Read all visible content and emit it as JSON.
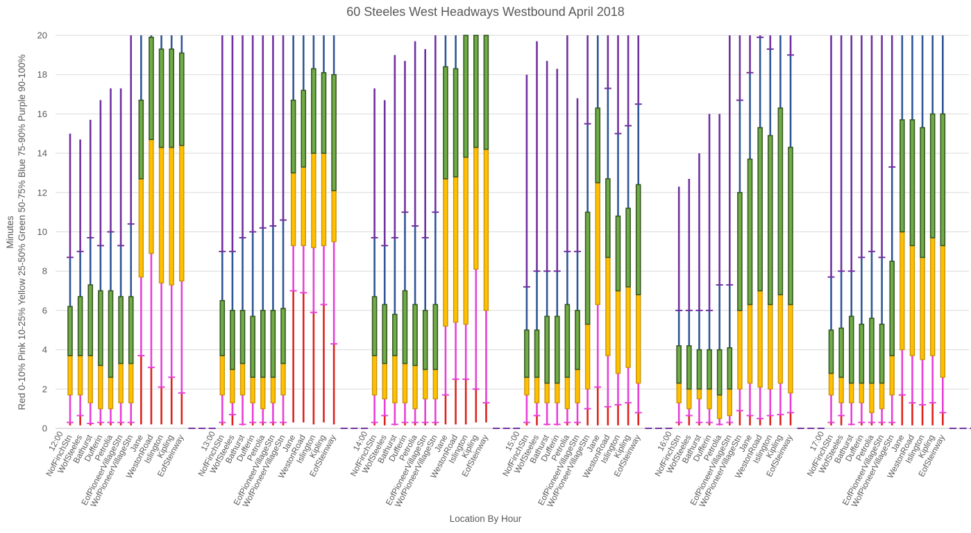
{
  "chart_data": {
    "type": "boxplot",
    "title": "60 Steeles West Headways Westbound April 2018",
    "xlabel": "Location By Hour",
    "ylabel_lines": [
      "Minutes",
      "Red 0-10%  Pink 10-25%  Yellow 25-50%  Green 50-75%  Blue 75-90%  Purple 90-100%"
    ],
    "ylim": [
      0,
      20
    ],
    "yticks": [
      0,
      2,
      4,
      6,
      8,
      10,
      12,
      14,
      16,
      18,
      20
    ],
    "grid": true,
    "segment_colors": {
      "red_0_10": "#e0201b",
      "pink_10_25": "#e83fd8",
      "yellow_25_50": "#ffc000",
      "yellow_border": "#c8930a",
      "green_50_75": "#70ad47",
      "green_border": "#375623",
      "blue_75_90": "#2f5597",
      "purple_90_100": "#7030a0",
      "tick_pink": "#e83fd8",
      "tick_purple": "#7030a0"
    },
    "stat_order": [
      "min",
      "p10",
      "p25",
      "p50",
      "p75",
      "p90",
      "max"
    ],
    "empty_slots_after_group": 3,
    "groups": [
      {
        "hour": "12:00",
        "locations": [
          {
            "name": "NofFinchStn",
            "stats": [
              0.15,
              0.3,
              1.7,
              3.7,
              6.2,
              8.7,
              15.0
            ]
          },
          {
            "name": "WofSteeles",
            "stats": [
              0.15,
              0.65,
              1.7,
              3.7,
              6.7,
              9.0,
              14.7
            ]
          },
          {
            "name": "Bathurst",
            "stats": [
              0.15,
              0.25,
              1.3,
              3.7,
              7.3,
              9.7,
              15.7
            ]
          },
          {
            "name": "Dufferin",
            "stats": [
              0.15,
              0.3,
              1.0,
              3.2,
              7.0,
              9.3,
              16.7
            ]
          },
          {
            "name": "Petrolia",
            "stats": [
              0.15,
              0.3,
              1.0,
              2.6,
              7.0,
              10.0,
              17.3
            ]
          },
          {
            "name": "EofPioneerVillageStn",
            "stats": [
              0.15,
              0.3,
              1.3,
              3.3,
              6.7,
              9.3,
              17.3
            ]
          },
          {
            "name": "WofPioneerVillageStn",
            "stats": [
              0.15,
              0.3,
              1.3,
              3.3,
              6.7,
              10.4,
              20
            ]
          },
          {
            "name": "Jane",
            "stats": [
              0.2,
              3.7,
              7.7,
              12.7,
              16.7,
              20,
              20
            ]
          },
          {
            "name": "WestonRoad",
            "stats": [
              0.2,
              3.1,
              8.9,
              14.7,
              19.9,
              20,
              20
            ]
          },
          {
            "name": "Islington",
            "stats": [
              0.2,
              2.1,
              7.4,
              14.3,
              19.3,
              20,
              20
            ]
          },
          {
            "name": "Kipling",
            "stats": [
              0.2,
              2.6,
              7.3,
              14.3,
              19.3,
              20,
              20
            ]
          },
          {
            "name": "EofSteinway",
            "stats": [
              0.2,
              1.8,
              7.5,
              14.4,
              19.1,
              20,
              20
            ]
          }
        ]
      },
      {
        "hour": "13:00",
        "locations": [
          {
            "name": "NofFinchStn",
            "stats": [
              0.15,
              0.3,
              1.7,
              3.7,
              6.5,
              9.0,
              20
            ]
          },
          {
            "name": "WofSteeles",
            "stats": [
              0.15,
              0.7,
              1.3,
              3.0,
              6.0,
              9.0,
              20
            ]
          },
          {
            "name": "Bathurst",
            "stats": [
              0.15,
              0.2,
              1.7,
              3.3,
              6.0,
              9.7,
              20
            ]
          },
          {
            "name": "Dufferin",
            "stats": [
              0.15,
              0.3,
              1.3,
              2.6,
              5.7,
              10.0,
              20
            ]
          },
          {
            "name": "Petrolia",
            "stats": [
              0.15,
              0.3,
              1.0,
              2.6,
              6.0,
              10.2,
              20
            ]
          },
          {
            "name": "EofPioneerVillageStn",
            "stats": [
              0.15,
              0.3,
              1.3,
              2.6,
              6.0,
              10.3,
              20
            ]
          },
          {
            "name": "WofPioneerVillageStn",
            "stats": [
              0.15,
              0.3,
              1.7,
              3.3,
              6.1,
              10.6,
              20
            ]
          },
          {
            "name": "Jane",
            "stats": [
              0.3,
              7.0,
              9.3,
              13.0,
              16.7,
              20,
              20
            ]
          },
          {
            "name": "WestonRoad",
            "stats": [
              0.3,
              6.9,
              9.3,
              13.3,
              17.2,
              20,
              20
            ]
          },
          {
            "name": "Islington",
            "stats": [
              0.2,
              5.9,
              9.2,
              14.0,
              18.3,
              20,
              20
            ]
          },
          {
            "name": "Kipling",
            "stats": [
              0.3,
              6.3,
              9.3,
              14.0,
              18.1,
              20,
              20
            ]
          },
          {
            "name": "EofSteinway",
            "stats": [
              0.2,
              4.3,
              9.5,
              12.1,
              18.0,
              20,
              20
            ]
          }
        ]
      },
      {
        "hour": "14:00",
        "locations": [
          {
            "name": "NofFinchStn",
            "stats": [
              0.15,
              0.3,
              1.7,
              3.7,
              6.7,
              9.7,
              17.3
            ]
          },
          {
            "name": "WofSteeles",
            "stats": [
              0.15,
              0.65,
              1.5,
              3.3,
              6.3,
              9.3,
              16.7
            ]
          },
          {
            "name": "Bathurst",
            "stats": [
              0.15,
              0.2,
              1.3,
              3.7,
              5.8,
              9.7,
              19.0
            ]
          },
          {
            "name": "Dufferin",
            "stats": [
              0.15,
              0.3,
              1.3,
              3.3,
              7.0,
              11.0,
              18.7
            ]
          },
          {
            "name": "Petrolia",
            "stats": [
              0.15,
              0.3,
              1.0,
              3.2,
              6.3,
              10.3,
              19.7
            ]
          },
          {
            "name": "EofPioneerVillageStn",
            "stats": [
              0.15,
              0.3,
              1.5,
              3.0,
              6.0,
              9.7,
              19.3
            ]
          },
          {
            "name": "WofPioneerVillageStn",
            "stats": [
              0.15,
              0.3,
              1.5,
              3.0,
              6.3,
              11.0,
              20
            ]
          },
          {
            "name": "Jane",
            "stats": [
              0.2,
              1.7,
              5.2,
              12.7,
              18.4,
              20,
              20
            ]
          },
          {
            "name": "WestonRoad",
            "stats": [
              0.2,
              2.5,
              5.4,
              12.8,
              18.3,
              20,
              20
            ]
          },
          {
            "name": "Islington",
            "stats": [
              0.2,
              2.5,
              5.3,
              13.8,
              20,
              20,
              20
            ]
          },
          {
            "name": "Kipling",
            "stats": [
              0.3,
              2.0,
              8.1,
              14.3,
              20,
              20,
              20
            ]
          },
          {
            "name": "EofSteinway",
            "stats": [
              0.3,
              1.3,
              6.0,
              14.2,
              20,
              20,
              20
            ]
          }
        ]
      },
      {
        "hour": "15:00",
        "locations": [
          {
            "name": "NofFinchStn",
            "stats": [
              0.15,
              0.3,
              1.7,
              2.6,
              5.0,
              7.2,
              18.0
            ]
          },
          {
            "name": "WofSteeles",
            "stats": [
              0.15,
              0.65,
              1.3,
              2.6,
              5.0,
              8.0,
              19.7
            ]
          },
          {
            "name": "Bathurst",
            "stats": [
              0.15,
              0.2,
              1.3,
              2.3,
              5.7,
              8.0,
              18.7
            ]
          },
          {
            "name": "Dufferin",
            "stats": [
              0.15,
              0.2,
              1.3,
              2.3,
              5.7,
              8.0,
              18.3
            ]
          },
          {
            "name": "Petrolia",
            "stats": [
              0.15,
              0.3,
              1.0,
              2.6,
              6.3,
              9.0,
              20
            ]
          },
          {
            "name": "EofPioneerVillageStn",
            "stats": [
              0.15,
              0.3,
              1.3,
              3.0,
              6.0,
              9.0,
              16.8
            ]
          },
          {
            "name": "WofPioneerVillageStn",
            "stats": [
              0.15,
              1.0,
              2.0,
              5.3,
              11.0,
              15.5,
              20
            ]
          },
          {
            "name": "Jane",
            "stats": [
              0.15,
              2.1,
              6.3,
              12.5,
              16.3,
              20,
              20
            ]
          },
          {
            "name": "WestonRoad",
            "stats": [
              0.15,
              1.1,
              3.7,
              8.7,
              12.7,
              17.3,
              20
            ]
          },
          {
            "name": "Islington",
            "stats": [
              0.15,
              1.2,
              2.8,
              7.0,
              10.8,
              15.0,
              20
            ]
          },
          {
            "name": "Kipling",
            "stats": [
              0.15,
              1.3,
              3.1,
              7.2,
              11.2,
              15.4,
              20
            ]
          },
          {
            "name": "EofSteinway",
            "stats": [
              0.15,
              0.8,
              2.3,
              6.8,
              12.4,
              16.5,
              20
            ]
          }
        ]
      },
      {
        "hour": "16:00",
        "locations": [
          {
            "name": "NofFinchStn",
            "stats": [
              0.15,
              0.3,
              1.3,
              2.3,
              4.2,
              6.0,
              12.3
            ]
          },
          {
            "name": "WofSteeles",
            "stats": [
              0.15,
              0.65,
              1.0,
              2.0,
              4.2,
              6.0,
              12.7
            ]
          },
          {
            "name": "Bathurst",
            "stats": [
              0.15,
              0.3,
              1.5,
              2.0,
              4.0,
              6.0,
              14.0
            ]
          },
          {
            "name": "Dufferin",
            "stats": [
              0.15,
              0.3,
              1.0,
              2.0,
              4.0,
              6.0,
              16.0
            ]
          },
          {
            "name": "Petrolia",
            "stats": [
              0.15,
              0.2,
              0.5,
              1.7,
              4.0,
              7.3,
              16.0
            ]
          },
          {
            "name": "EofPioneerVillageStn",
            "stats": [
              0.15,
              0.3,
              0.65,
              2.0,
              4.1,
              7.3,
              20
            ]
          },
          {
            "name": "WofPioneerVillageStn",
            "stats": [
              0.15,
              0.9,
              2.0,
              6.0,
              12.0,
              16.7,
              20
            ]
          },
          {
            "name": "Jane",
            "stats": [
              0.15,
              0.65,
              2.3,
              6.3,
              13.7,
              18.1,
              20
            ]
          },
          {
            "name": "WestonRoad",
            "stats": [
              0.15,
              0.5,
              2.1,
              7.0,
              15.3,
              19.9,
              20
            ]
          },
          {
            "name": "Islington",
            "stats": [
              0.15,
              0.65,
              2.0,
              6.3,
              14.9,
              19.3,
              20
            ]
          },
          {
            "name": "Kipling",
            "stats": [
              0.15,
              0.7,
              2.3,
              6.8,
              16.3,
              20,
              20
            ]
          },
          {
            "name": "EofSteinway",
            "stats": [
              0.15,
              0.8,
              1.8,
              6.3,
              14.3,
              19.0,
              20
            ]
          }
        ]
      },
      {
        "hour": "17:00",
        "locations": [
          {
            "name": "NofFinchStn",
            "stats": [
              0.15,
              0.3,
              1.7,
              2.8,
              5.0,
              7.7,
              20
            ]
          },
          {
            "name": "WofSteeles",
            "stats": [
              0.15,
              0.65,
              1.3,
              2.6,
              5.1,
              8.0,
              20
            ]
          },
          {
            "name": "Bathurst",
            "stats": [
              0.15,
              0.2,
              1.3,
              2.3,
              5.7,
              8.0,
              20
            ]
          },
          {
            "name": "Dufferin",
            "stats": [
              0.15,
              0.3,
              1.3,
              2.3,
              5.3,
              8.7,
              20
            ]
          },
          {
            "name": "Petrolia",
            "stats": [
              0.15,
              0.3,
              0.8,
              2.3,
              5.6,
              9.0,
              20
            ]
          },
          {
            "name": "EofPioneerVillageStn",
            "stats": [
              0.15,
              0.3,
              1.0,
              2.3,
              5.3,
              8.7,
              20
            ]
          },
          {
            "name": "WofPioneerVillageStn",
            "stats": [
              0.15,
              0.3,
              1.7,
              3.7,
              8.5,
              13.3,
              20
            ]
          },
          {
            "name": "Jane",
            "stats": [
              0.15,
              1.7,
              4.0,
              10.0,
              15.7,
              20,
              20
            ]
          },
          {
            "name": "WestonRoad",
            "stats": [
              0.15,
              1.3,
              3.7,
              9.3,
              15.7,
              20,
              20
            ]
          },
          {
            "name": "Islington",
            "stats": [
              0.15,
              1.2,
              3.5,
              8.7,
              15.3,
              20,
              20
            ]
          },
          {
            "name": "Kipling",
            "stats": [
              0.15,
              1.3,
              3.7,
              9.7,
              16.0,
              20,
              20
            ]
          },
          {
            "name": "EofSteinway",
            "stats": [
              0.15,
              0.8,
              2.6,
              9.3,
              16.0,
              20,
              20
            ]
          }
        ]
      }
    ]
  }
}
